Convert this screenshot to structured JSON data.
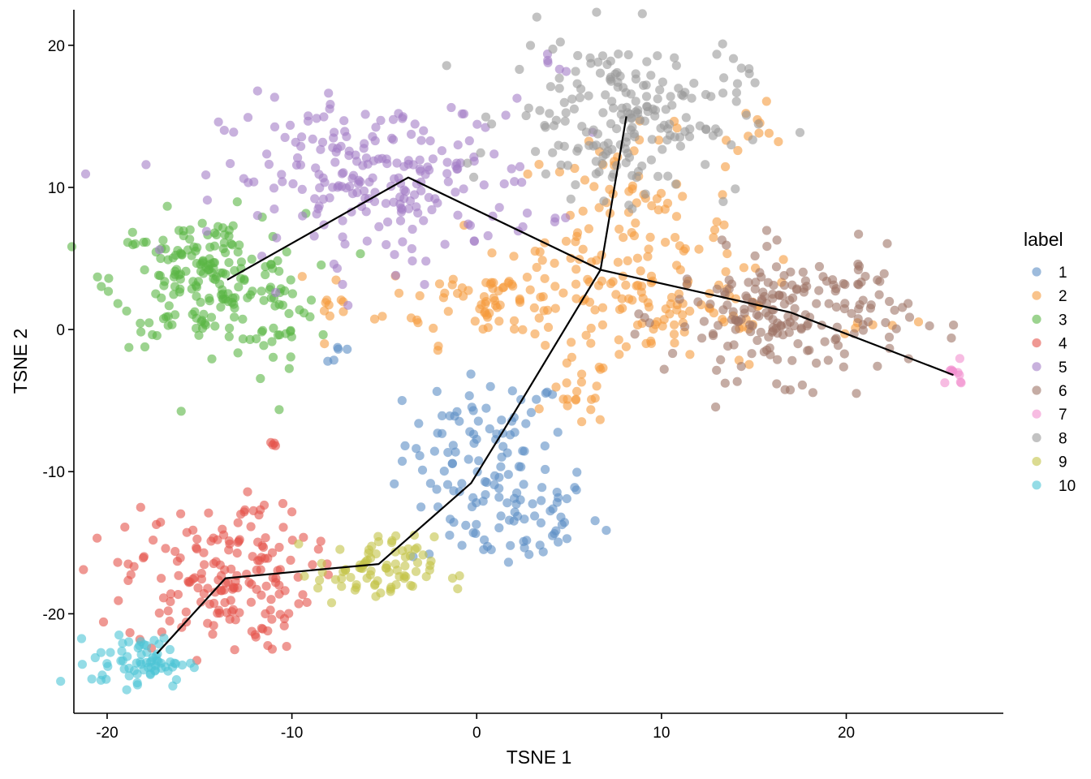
{
  "chart_data": {
    "type": "scatter",
    "xlabel": "TSNE 1",
    "ylabel": "TSNE 2",
    "xlim": [
      -21.8,
      28.5
    ],
    "ylim": [
      -27.0,
      22.5
    ],
    "x_ticks": [
      -20,
      -10,
      0,
      10,
      20
    ],
    "x_tick_labels": [
      "-20",
      "-10",
      "0",
      "10",
      "20"
    ],
    "y_ticks": [
      -20,
      -10,
      0,
      10,
      20
    ],
    "y_tick_labels": [
      "-20",
      "-10",
      "0",
      "10",
      "20"
    ],
    "grid": false,
    "legend": {
      "title": "label",
      "position": "right"
    },
    "point_opacity": 0.6,
    "series": [
      {
        "name": "1",
        "color": "#5B8DC5",
        "clusters": [
          {
            "cx": 0.5,
            "cy": -8.0,
            "sx": 2.2,
            "sy": 2.4,
            "n": 70
          },
          {
            "cx": 1.5,
            "cy": -13.0,
            "sx": 2.6,
            "sy": 2.0,
            "n": 75
          },
          {
            "cx": -7.6,
            "cy": -1.5,
            "sx": 0.5,
            "sy": 0.6,
            "n": 5
          }
        ]
      },
      {
        "name": "2",
        "color": "#F59B3D",
        "clusters": [
          {
            "cx": 1.0,
            "cy": 2.0,
            "sx": 3.0,
            "sy": 1.5,
            "n": 80
          },
          {
            "cx": 8.0,
            "cy": 6.5,
            "sx": 3.0,
            "sy": 3.5,
            "n": 110
          },
          {
            "cx": 11.0,
            "cy": 1.5,
            "sx": 3.5,
            "sy": 2.2,
            "n": 70
          },
          {
            "cx": 5.5,
            "cy": -4.5,
            "sx": 0.8,
            "sy": 1.2,
            "n": 20
          },
          {
            "cx": -7.8,
            "cy": 0.3,
            "sx": 0.6,
            "sy": 1.3,
            "n": 10
          },
          {
            "cx": 15.5,
            "cy": 14.5,
            "sx": 0.9,
            "sy": 1.2,
            "n": 10
          },
          {
            "cx": 21.5,
            "cy": 0.2,
            "sx": 1.0,
            "sy": 0.5,
            "n": 6
          }
        ]
      },
      {
        "name": "3",
        "color": "#5AB545",
        "clusters": [
          {
            "cx": -14.5,
            "cy": 3.5,
            "sx": 2.6,
            "sy": 2.3,
            "n": 200
          },
          {
            "cx": -10.5,
            "cy": -0.5,
            "sx": 1.0,
            "sy": 1.8,
            "n": 20
          }
        ]
      },
      {
        "name": "4",
        "color": "#E5534B",
        "clusters": [
          {
            "cx": -14.0,
            "cy": -17.5,
            "sx": 2.5,
            "sy": 2.6,
            "n": 170
          },
          {
            "cx": -11.0,
            "cy": -8.0,
            "sx": 0.2,
            "sy": 0.2,
            "n": 4
          },
          {
            "cx": -12.0,
            "cy": -13.0,
            "sx": 0.6,
            "sy": 0.3,
            "n": 6
          }
        ]
      },
      {
        "name": "5",
        "color": "#A47DC7",
        "clusters": [
          {
            "cx": -5.0,
            "cy": 10.5,
            "sx": 4.3,
            "sy": 2.8,
            "n": 230
          },
          {
            "cx": 3.8,
            "cy": 18.8,
            "sx": 0.4,
            "sy": 0.6,
            "n": 5
          }
        ]
      },
      {
        "name": "6",
        "color": "#9E7467",
        "clusters": [
          {
            "cx": 17.0,
            "cy": 1.0,
            "sx": 3.2,
            "sy": 2.2,
            "n": 200
          }
        ]
      },
      {
        "name": "7",
        "color": "#F28FCE",
        "clusters": [
          {
            "cx": 25.8,
            "cy": -3.2,
            "sx": 0.4,
            "sy": 0.4,
            "n": 10
          }
        ]
      },
      {
        "name": "8",
        "color": "#9A9A9A",
        "clusters": [
          {
            "cx": 8.0,
            "cy": 15.0,
            "sx": 3.2,
            "sy": 2.8,
            "n": 200
          }
        ]
      },
      {
        "name": "9",
        "color": "#C3C347",
        "clusters": [
          {
            "cx": -5.5,
            "cy": -17.0,
            "sx": 1.6,
            "sy": 1.2,
            "n": 80
          }
        ]
      },
      {
        "name": "10",
        "color": "#4DC4D6",
        "clusters": [
          {
            "cx": -18.2,
            "cy": -23.4,
            "sx": 1.3,
            "sy": 0.9,
            "n": 70
          }
        ]
      }
    ],
    "trajectory": [
      [
        [
          -17.3,
          -22.8
        ],
        [
          -13.6,
          -17.5
        ],
        [
          -5.3,
          -16.5
        ],
        [
          -0.3,
          -10.8
        ],
        [
          1.5,
          -7.0
        ],
        [
          6.7,
          4.2
        ],
        [
          17.0,
          1.2
        ],
        [
          25.8,
          -3.2
        ]
      ],
      [
        [
          8.1,
          15.0
        ],
        [
          6.7,
          4.2
        ]
      ],
      [
        [
          6.7,
          4.2
        ],
        [
          -3.7,
          10.7
        ],
        [
          -13.5,
          3.5
        ]
      ]
    ]
  }
}
